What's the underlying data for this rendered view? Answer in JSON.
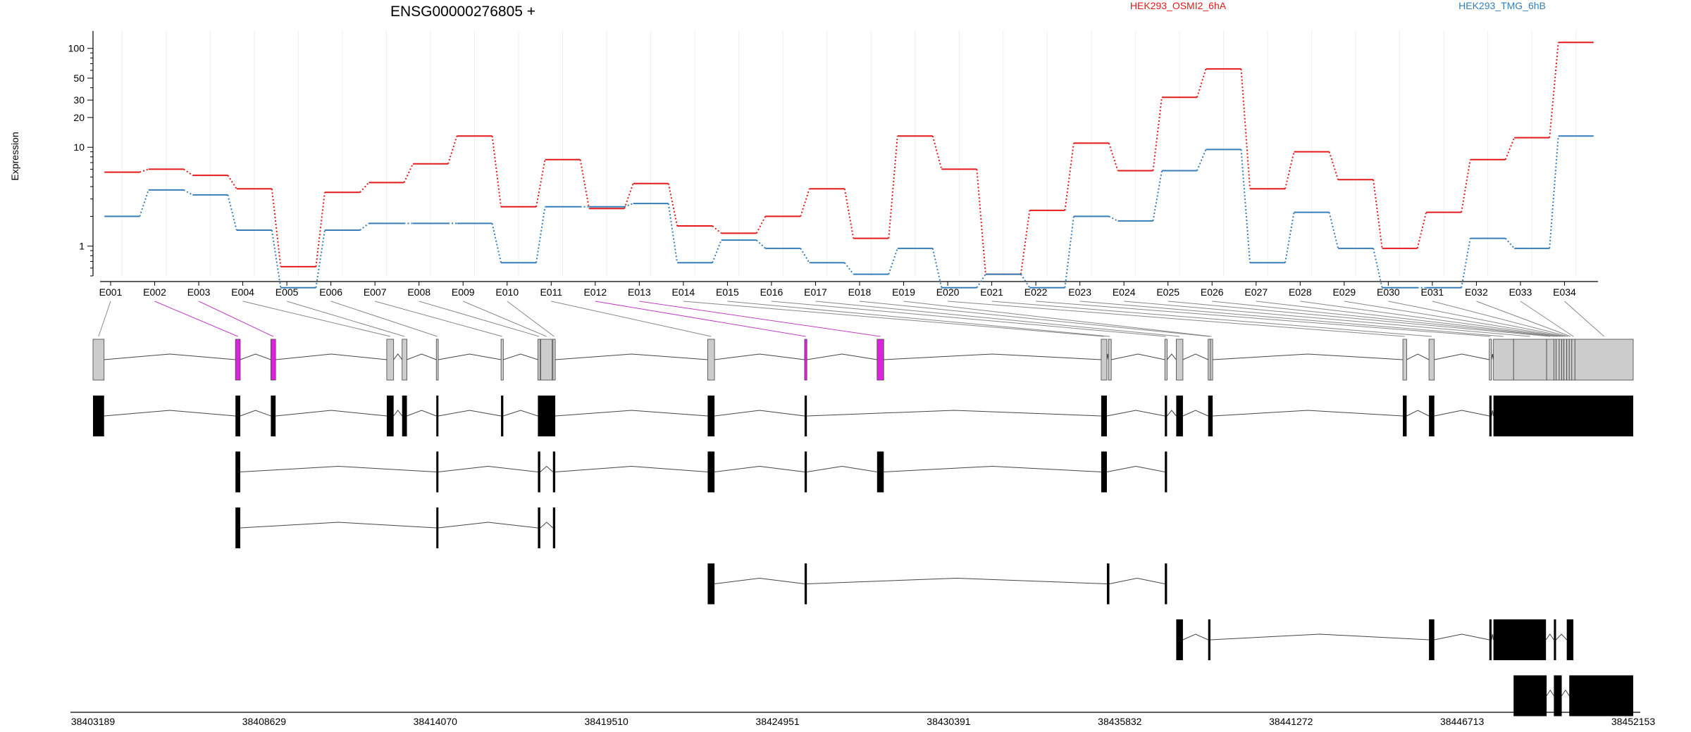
{
  "chart_data": {
    "type": "line",
    "title": "ENSG00000276805 +",
    "ylabel": "Expression",
    "y_scale": "log",
    "ylim": [
      0.5,
      150
    ],
    "y_ticks": [
      1,
      10,
      20,
      30,
      50,
      100
    ],
    "grid": "vertical lines at exon bins",
    "legend_placement": "top-right",
    "categories": [
      "E001",
      "E002",
      "E003",
      "E004",
      "E005",
      "E006",
      "E007",
      "E008",
      "E009",
      "E010",
      "E011",
      "E012",
      "E013",
      "E014",
      "E015",
      "E016",
      "E017",
      "E018",
      "E019",
      "E020",
      "E021",
      "E022",
      "E023",
      "E024",
      "E025",
      "E026",
      "E027",
      "E028",
      "E029",
      "E030",
      "E031",
      "E032",
      "E033",
      "E034"
    ],
    "series": [
      {
        "name": "HEK293_OSMI2_6hA",
        "color": "#e41a1c",
        "values": [
          5.6,
          6.0,
          5.2,
          3.8,
          0.62,
          3.5,
          4.4,
          6.8,
          13.0,
          2.5,
          7.5,
          2.4,
          4.3,
          1.6,
          1.35,
          2.0,
          3.8,
          1.2,
          13.0,
          6.0,
          0.52,
          2.3,
          11.0,
          5.8,
          32.0,
          62.0,
          3.8,
          9.0,
          4.7,
          0.95,
          2.2,
          7.5,
          12.5,
          115.0
        ]
      },
      {
        "name": "HEK293_TMG_6hB",
        "color": "#377eb8",
        "values": [
          2.0,
          3.7,
          3.3,
          1.45,
          0.38,
          1.45,
          1.7,
          1.7,
          1.7,
          0.68,
          2.5,
          2.5,
          2.7,
          0.68,
          1.15,
          0.95,
          0.68,
          0.52,
          0.95,
          0.38,
          0.52,
          0.38,
          2.0,
          1.8,
          5.8,
          9.5,
          0.68,
          2.2,
          0.95,
          0.38,
          0.38,
          1.2,
          0.95,
          13.0
        ]
      }
    ],
    "genomic_axis": {
      "ticks": [
        "38403189",
        "38408629",
        "38414070",
        "38419510",
        "38424951",
        "38430391",
        "38435832",
        "38441272",
        "38446713",
        "38452153"
      ],
      "start": 38403189,
      "end": 38452153
    },
    "exon_bins": [
      [
        38403189,
        38403541,
        0
      ],
      [
        38407718,
        38407870,
        1
      ],
      [
        38408842,
        38408994,
        1
      ],
      [
        38412528,
        38412746,
        0
      ],
      [
        38413016,
        38413168,
        0
      ],
      [
        38414103,
        38414165,
        0
      ],
      [
        38416160,
        38416233,
        0
      ],
      [
        38417332,
        38417408,
        0
      ],
      [
        38417420,
        38417789,
        0
      ],
      [
        38417810,
        38417884,
        0
      ],
      [
        38422730,
        38422947,
        0
      ],
      [
        38425810,
        38425883,
        1
      ],
      [
        38428115,
        38428327,
        1
      ],
      [
        38435240,
        38435420,
        0
      ],
      [
        38435470,
        38435560,
        0
      ],
      [
        38437262,
        38437334,
        0
      ],
      [
        38437625,
        38437838,
        0
      ],
      [
        38438640,
        38438712,
        0
      ],
      [
        38438712,
        38438784,
        0
      ],
      [
        38444830,
        38444950,
        0
      ],
      [
        38445660,
        38445830,
        0
      ],
      [
        38447578,
        38447650,
        0
      ],
      [
        38447710,
        38448350,
        0
      ],
      [
        38448350,
        38449400,
        0
      ],
      [
        38449400,
        38449630,
        0
      ],
      [
        38449630,
        38449700,
        0
      ],
      [
        38449700,
        38449800,
        0
      ],
      [
        38449800,
        38449880,
        0
      ],
      [
        38449880,
        38449950,
        0
      ],
      [
        38449950,
        38450040,
        0
      ],
      [
        38450040,
        38450120,
        0
      ],
      [
        38450120,
        38450200,
        0
      ],
      [
        38450200,
        38450300,
        0
      ],
      [
        38450300,
        38452153,
        0
      ]
    ],
    "transcripts": [
      [
        [
          38403189,
          38403541
        ],
        [
          38407718,
          38407870
        ],
        [
          38408842,
          38408994
        ],
        [
          38412528,
          38412746
        ],
        [
          38413016,
          38413168
        ],
        [
          38414103,
          38414165
        ],
        [
          38416160,
          38416233
        ],
        [
          38417332,
          38417884
        ],
        [
          38422730,
          38422947
        ],
        [
          38425810,
          38425883
        ],
        [
          38435240,
          38435420
        ],
        [
          38437262,
          38437334
        ],
        [
          38437625,
          38437838
        ],
        [
          38438640,
          38438784
        ],
        [
          38444830,
          38444950
        ],
        [
          38445660,
          38445830
        ],
        [
          38447578,
          38447650
        ],
        [
          38447710,
          38452153
        ]
      ],
      [
        [
          38407718,
          38407870
        ],
        [
          38414103,
          38414165
        ],
        [
          38417332,
          38417408
        ],
        [
          38417810,
          38417884
        ],
        [
          38422730,
          38422947
        ],
        [
          38425810,
          38425883
        ],
        [
          38428115,
          38428327
        ],
        [
          38435240,
          38435420
        ],
        [
          38437262,
          38437334
        ]
      ],
      [
        [
          38407718,
          38407870
        ],
        [
          38414103,
          38414165
        ],
        [
          38417332,
          38417408
        ],
        [
          38417810,
          38417884
        ]
      ],
      [
        [
          38422730,
          38422947
        ],
        [
          38425810,
          38425883
        ],
        [
          38435420,
          38435500
        ],
        [
          38437262,
          38437334
        ]
      ],
      [
        [
          38437625,
          38437838
        ],
        [
          38438640,
          38438712
        ],
        [
          38445660,
          38445830
        ],
        [
          38447578,
          38447650
        ],
        [
          38447710,
          38449380
        ],
        [
          38449630,
          38449700
        ],
        [
          38450040,
          38450250
        ]
      ],
      [
        [
          38448350,
          38449400
        ],
        [
          38449630,
          38449880
        ],
        [
          38450120,
          38452153
        ]
      ]
    ]
  }
}
